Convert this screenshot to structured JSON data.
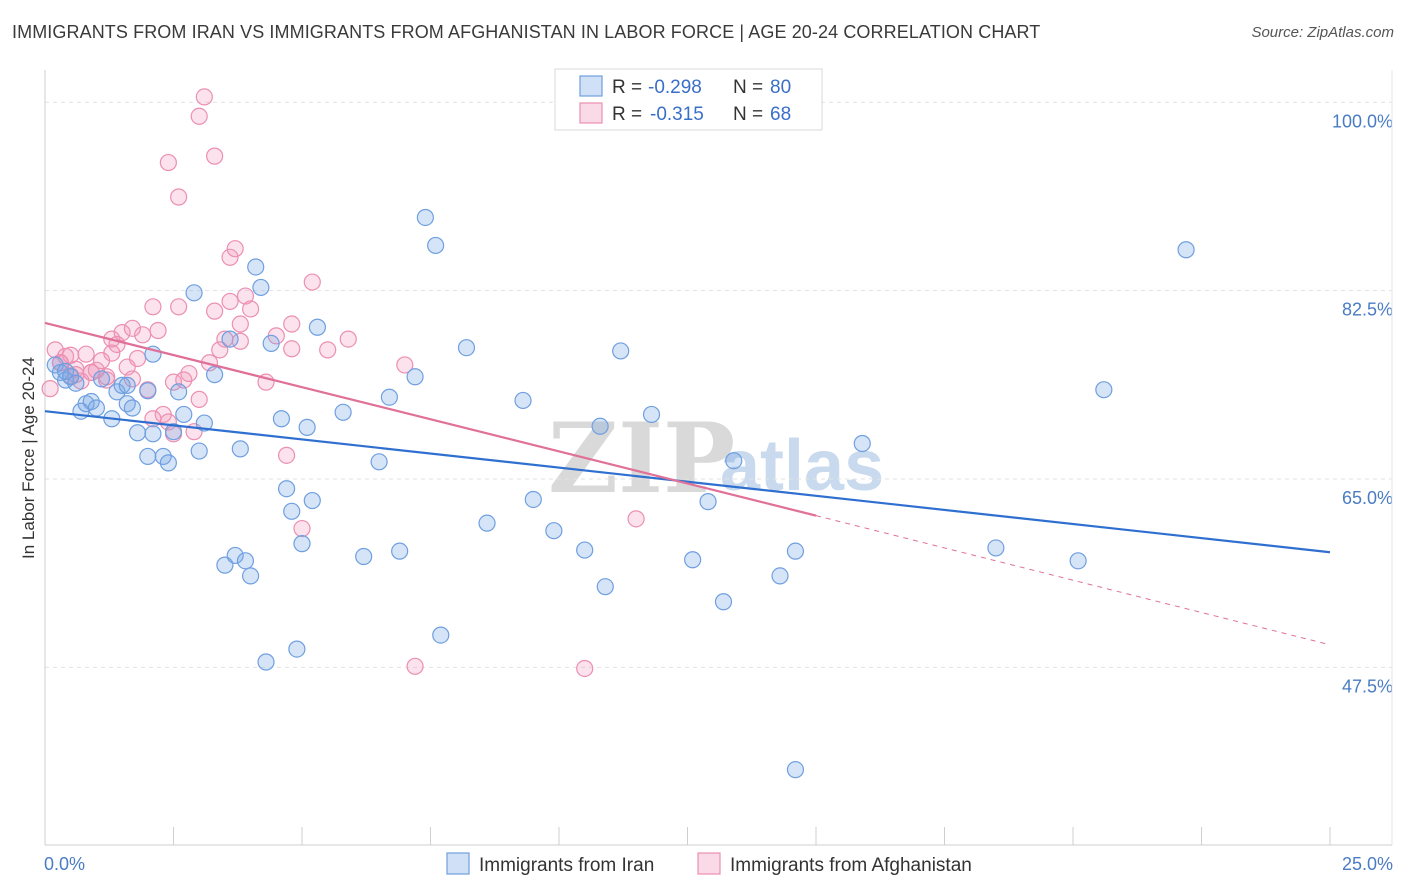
{
  "title": "IMMIGRANTS FROM IRAN VS IMMIGRANTS FROM AFGHANISTAN IN LABOR FORCE | AGE 20-24 CORRELATION CHART",
  "source": "Source: ZipAtlas.com",
  "colors": {
    "iran": "#6f9fe0",
    "iran_fill": "rgba(120,165,230,0.30)",
    "iran_line": "#2f6fd0",
    "afghan": "#ec8fb0",
    "afghan_fill": "rgba(240,150,185,0.28)",
    "afghan_line": "#e07098",
    "tick_text": "#4a7cc4"
  },
  "legend": {
    "r_label": "R =",
    "n_label": "N =",
    "iran_r": "-0.298",
    "iran_n": "80",
    "afghan_r": "-0.315",
    "afghan_n": "68"
  },
  "watermark": {
    "zip": "ZIP",
    "atlas": "atlas"
  },
  "chart_data": {
    "type": "scatter",
    "title": "IMMIGRANTS FROM IRAN VS IMMIGRANTS FROM AFGHANISTAN IN LABOR FORCE | AGE 20-24 CORRELATION CHART",
    "xlabel": "",
    "ylabel": "In Labor Force | Age 20-24",
    "xlim": [
      0,
      25
    ],
    "ylim": [
      31.0,
      103.0
    ],
    "x_tick_labels": [
      "0.0%",
      "25.0%"
    ],
    "y_ticks": [
      47.5,
      65.0,
      82.5,
      100.0
    ],
    "y_tick_labels": [
      "47.5%",
      "65.0%",
      "82.5%",
      "100.0%"
    ],
    "series": [
      {
        "name": "Immigrants from Iran",
        "r": -0.298,
        "n": 80,
        "trend": {
          "x": [
            0,
            25
          ],
          "y": [
            71.3,
            58.2
          ]
        },
        "points": [
          [
            0.2,
            75.6
          ],
          [
            0.3,
            74.9
          ],
          [
            0.4,
            74.2
          ],
          [
            0.5,
            74.5
          ],
          [
            0.6,
            73.9
          ],
          [
            0.7,
            71.3
          ],
          [
            0.8,
            72.0
          ],
          [
            0.9,
            72.2
          ],
          [
            1.0,
            71.6
          ],
          [
            1.1,
            74.3
          ],
          [
            1.3,
            70.6
          ],
          [
            1.4,
            73.1
          ],
          [
            1.5,
            73.7
          ],
          [
            1.6,
            72.0
          ],
          [
            1.7,
            71.6
          ],
          [
            1.8,
            69.3
          ],
          [
            2.0,
            67.1
          ],
          [
            2.1,
            69.2
          ],
          [
            2.3,
            67.1
          ],
          [
            2.4,
            66.5
          ],
          [
            2.0,
            73.2
          ],
          [
            2.1,
            76.6
          ],
          [
            2.5,
            69.4
          ],
          [
            2.6,
            73.1
          ],
          [
            2.7,
            71.0
          ],
          [
            2.9,
            82.3
          ],
          [
            3.0,
            67.6
          ],
          [
            3.1,
            70.2
          ],
          [
            3.3,
            74.7
          ],
          [
            3.5,
            57.0
          ],
          [
            3.6,
            78.0
          ],
          [
            3.7,
            57.9
          ],
          [
            3.8,
            67.8
          ],
          [
            3.9,
            57.4
          ],
          [
            4.0,
            56.0
          ],
          [
            4.1,
            84.7
          ],
          [
            4.2,
            82.8
          ],
          [
            4.3,
            48.0
          ],
          [
            4.4,
            77.6
          ],
          [
            4.6,
            70.6
          ],
          [
            4.7,
            64.1
          ],
          [
            4.8,
            62.0
          ],
          [
            4.9,
            49.2
          ],
          [
            5.0,
            59.0
          ],
          [
            5.1,
            69.8
          ],
          [
            5.2,
            63.0
          ],
          [
            5.3,
            79.1
          ],
          [
            5.8,
            71.2
          ],
          [
            6.2,
            57.8
          ],
          [
            6.5,
            66.6
          ],
          [
            6.7,
            72.6
          ],
          [
            6.9,
            58.3
          ],
          [
            7.2,
            74.5
          ],
          [
            7.4,
            89.3
          ],
          [
            7.6,
            86.7
          ],
          [
            7.7,
            50.5
          ],
          [
            8.2,
            77.2
          ],
          [
            8.6,
            60.9
          ],
          [
            9.3,
            72.3
          ],
          [
            9.5,
            63.1
          ],
          [
            9.9,
            60.2
          ],
          [
            10.5,
            58.4
          ],
          [
            10.8,
            69.9
          ],
          [
            10.9,
            55.0
          ],
          [
            11.2,
            76.9
          ],
          [
            11.8,
            71.0
          ],
          [
            12.6,
            57.5
          ],
          [
            12.9,
            62.9
          ],
          [
            13.2,
            53.6
          ],
          [
            13.4,
            66.7
          ],
          [
            14.3,
            56.0
          ],
          [
            14.6,
            58.3
          ],
          [
            14.6,
            38.0
          ],
          [
            15.9,
            68.3
          ],
          [
            18.5,
            58.6
          ],
          [
            20.1,
            57.4
          ],
          [
            20.6,
            73.3
          ],
          [
            22.2,
            86.3
          ],
          [
            1.6,
            73.7
          ],
          [
            0.4,
            75.0
          ]
        ]
      },
      {
        "name": "Immigrants from Afghanistan",
        "r": -0.315,
        "n": 68,
        "trend": {
          "x": [
            0,
            15.0
          ],
          "y": [
            79.5,
            61.6
          ]
        },
        "trend_dashed": {
          "x": [
            15.0,
            25
          ],
          "y": [
            61.6,
            49.6
          ]
        },
        "points": [
          [
            0.1,
            73.4
          ],
          [
            0.2,
            77.0
          ],
          [
            0.3,
            75.8
          ],
          [
            0.4,
            76.4
          ],
          [
            0.5,
            74.6
          ],
          [
            0.6,
            75.2
          ],
          [
            0.7,
            74.1
          ],
          [
            0.8,
            76.6
          ],
          [
            0.9,
            74.9
          ],
          [
            1.0,
            75.1
          ],
          [
            1.1,
            76.0
          ],
          [
            1.2,
            74.2
          ],
          [
            1.3,
            78.0
          ],
          [
            1.4,
            77.5
          ],
          [
            1.5,
            78.6
          ],
          [
            1.6,
            75.4
          ],
          [
            1.7,
            74.3
          ],
          [
            1.8,
            76.2
          ],
          [
            1.9,
            78.4
          ],
          [
            2.0,
            73.3
          ],
          [
            2.1,
            81.0
          ],
          [
            2.2,
            78.8
          ],
          [
            2.3,
            71.0
          ],
          [
            2.4,
            70.3
          ],
          [
            2.5,
            69.2
          ],
          [
            2.6,
            81.0
          ],
          [
            2.7,
            74.2
          ],
          [
            2.8,
            74.8
          ],
          [
            2.9,
            69.4
          ],
          [
            3.0,
            72.4
          ],
          [
            3.2,
            75.8
          ],
          [
            3.3,
            80.6
          ],
          [
            3.4,
            77.0
          ],
          [
            3.5,
            78.0
          ],
          [
            3.6,
            85.6
          ],
          [
            3.7,
            86.4
          ],
          [
            3.8,
            79.4
          ],
          [
            3.9,
            82.0
          ],
          [
            4.0,
            80.8
          ],
          [
            4.3,
            74.0
          ],
          [
            4.5,
            78.3
          ],
          [
            4.7,
            67.2
          ],
          [
            4.8,
            77.1
          ],
          [
            5.0,
            60.4
          ],
          [
            5.2,
            83.3
          ],
          [
            5.5,
            77.0
          ],
          [
            5.9,
            78.0
          ],
          [
            7.0,
            75.6
          ],
          [
            2.4,
            94.4
          ],
          [
            2.6,
            91.2
          ],
          [
            3.1,
            100.5
          ],
          [
            3.3,
            95.0
          ],
          [
            3.0,
            98.7
          ],
          [
            7.2,
            47.6
          ],
          [
            10.5,
            47.4
          ],
          [
            11.5,
            61.3
          ],
          [
            0.5,
            76.5
          ],
          [
            0.9,
            74.9
          ],
          [
            1.2,
            74.5
          ],
          [
            2.5,
            74.0
          ],
          [
            3.8,
            77.8
          ],
          [
            1.7,
            79.0
          ],
          [
            3.6,
            81.5
          ],
          [
            1.3,
            76.7
          ],
          [
            0.3,
            75.8
          ],
          [
            0.6,
            74.7
          ],
          [
            4.8,
            79.4
          ],
          [
            2.1,
            70.6
          ]
        ]
      }
    ]
  }
}
